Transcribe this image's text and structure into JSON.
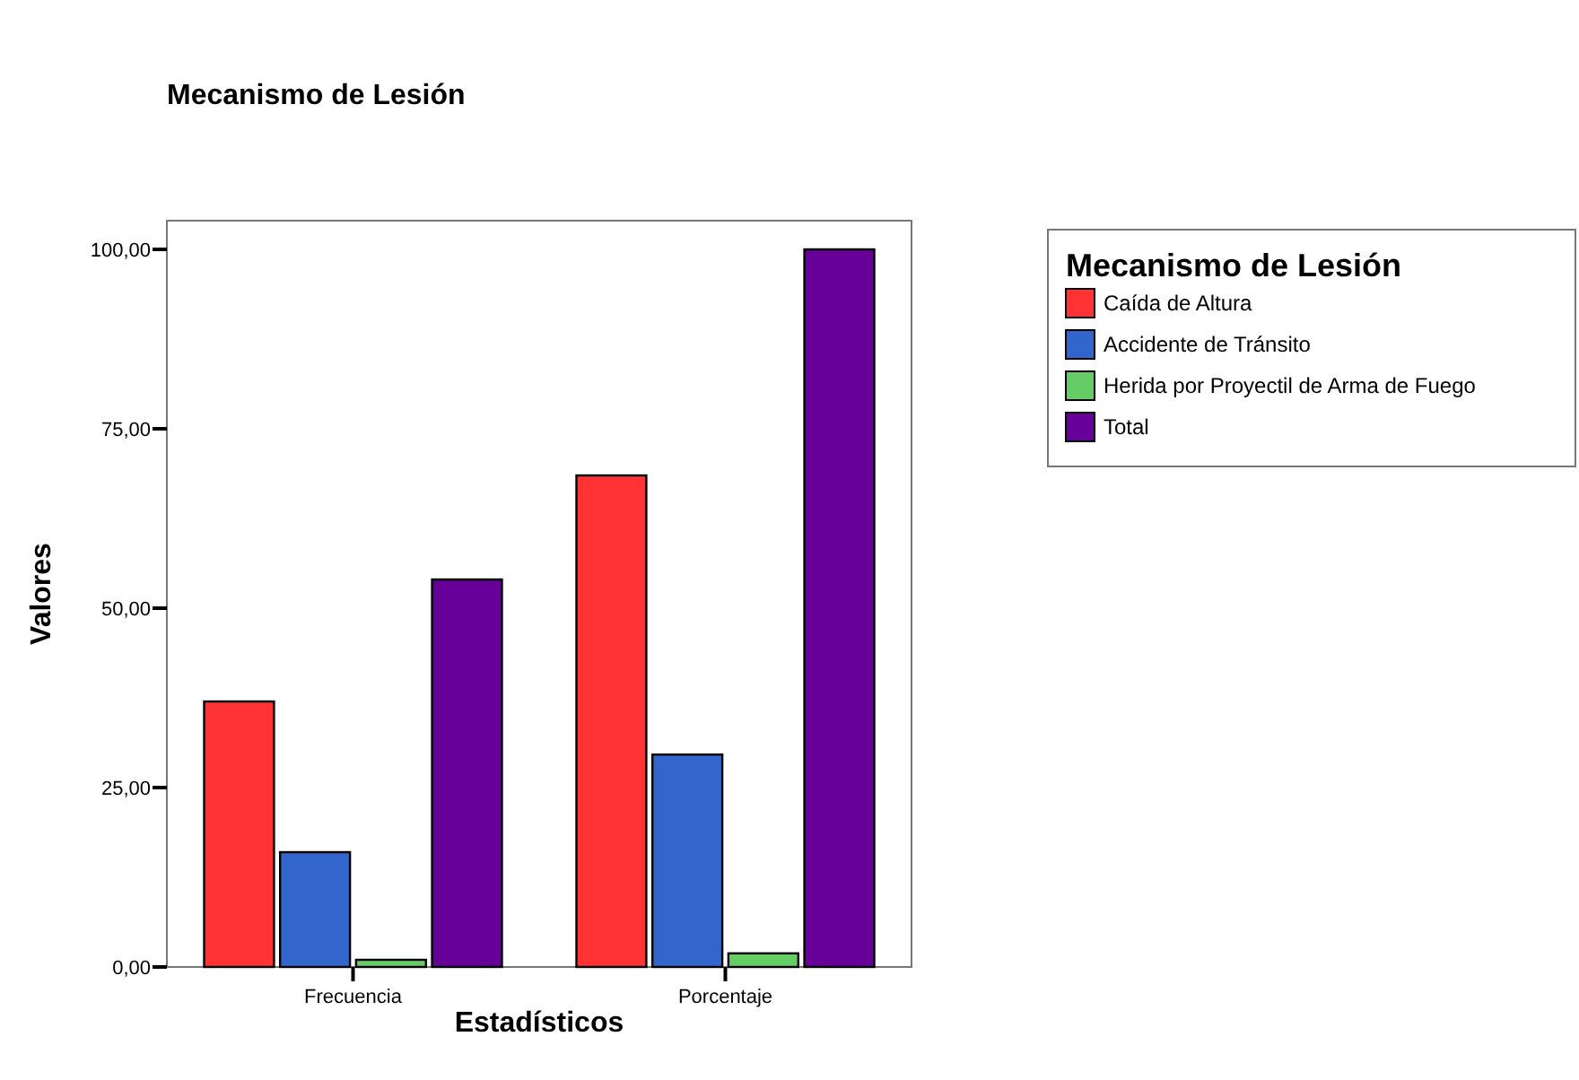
{
  "chart_data": {
    "type": "bar",
    "title": "Mecanismo de Lesión",
    "xlabel": "Estadísticos",
    "ylabel": "Valores",
    "legend_title": "Mecanismo de Lesión",
    "legend": "right",
    "categories": [
      "Frecuencia",
      "Porcentaje"
    ],
    "series": [
      {
        "name": "Caída de Altura",
        "color": "#ff3333",
        "values": [
          37,
          68.5
        ]
      },
      {
        "name": "Accidente de Tránsito",
        "color": "#3366cc",
        "values": [
          16,
          29.6
        ]
      },
      {
        "name": "Herida por Proyectil de Arma de Fuego",
        "color": "#66cc66",
        "values": [
          1,
          1.9
        ]
      },
      {
        "name": "Total",
        "color": "#660099",
        "values": [
          54,
          100
        ]
      }
    ],
    "ylim": [
      0,
      104
    ],
    "yticks": [
      {
        "value": 0,
        "label": "0,00"
      },
      {
        "value": 25,
        "label": "25,00"
      },
      {
        "value": 50,
        "label": "50,00"
      },
      {
        "value": 75,
        "label": "75,00"
      },
      {
        "value": 100,
        "label": "100,00"
      }
    ],
    "grid": false
  }
}
